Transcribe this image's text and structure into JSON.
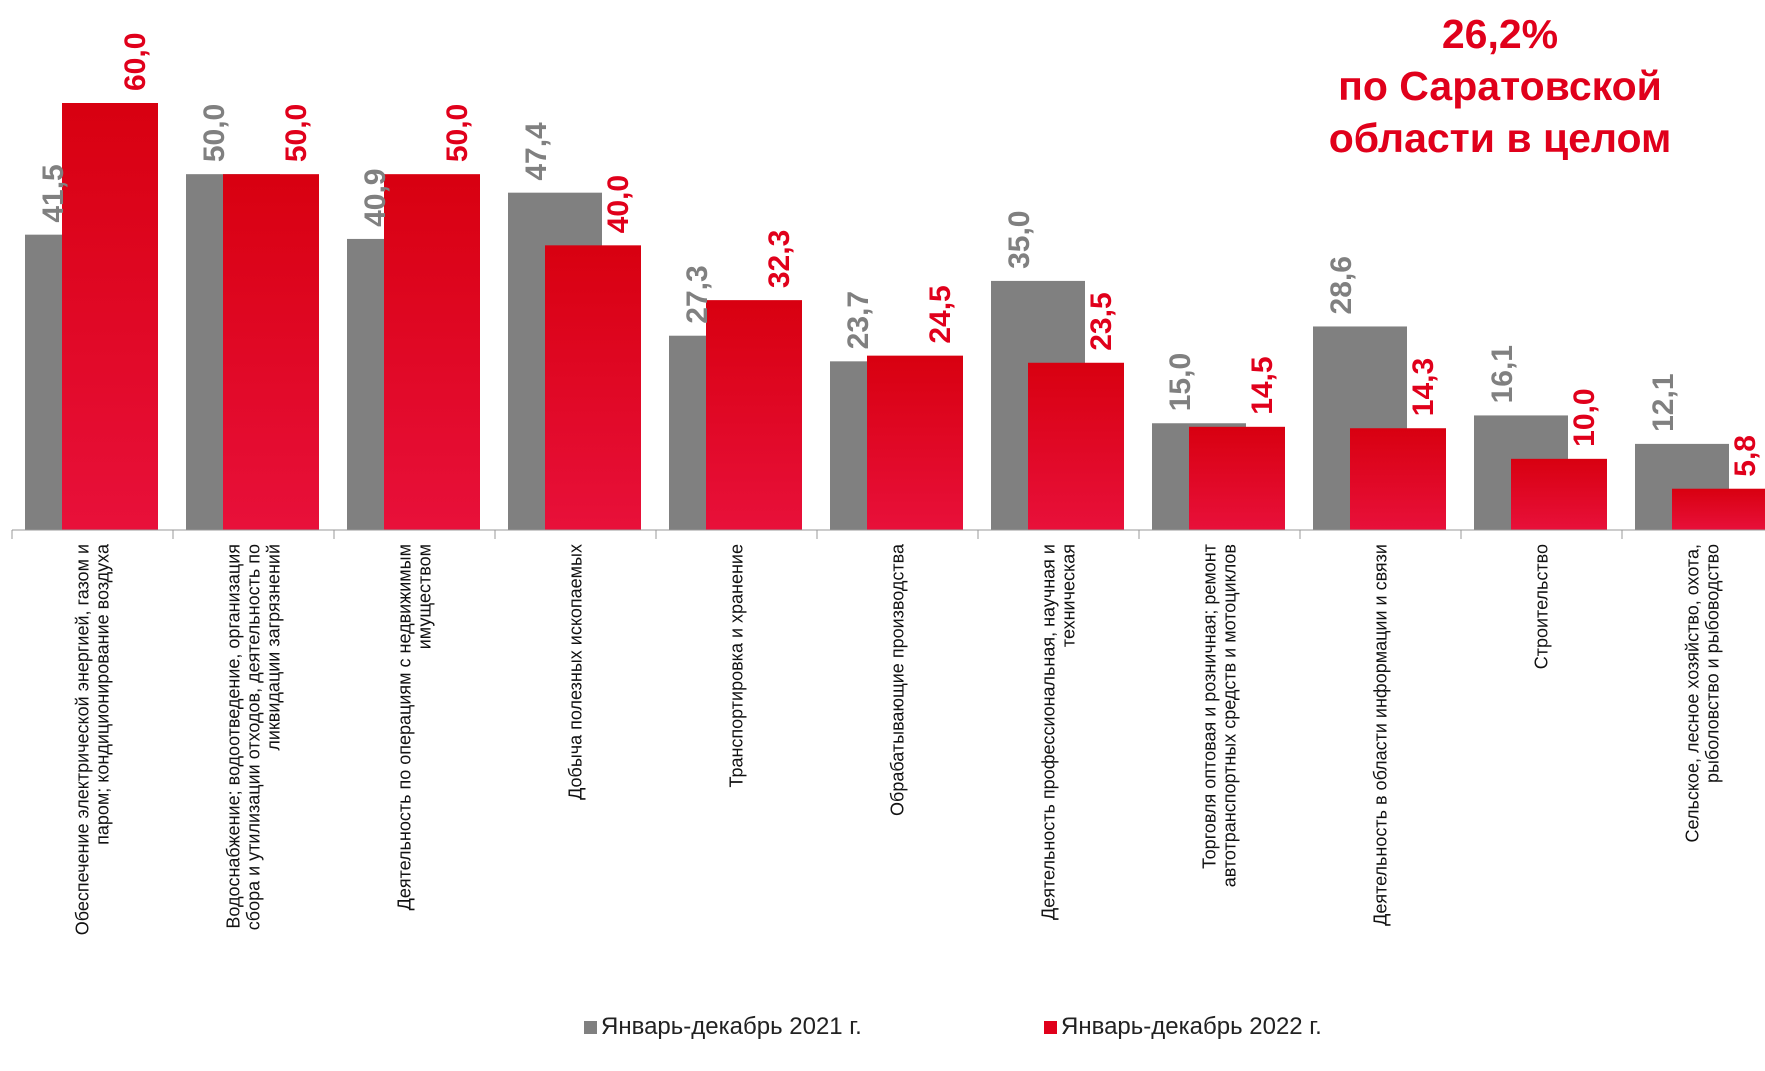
{
  "annotation": {
    "line1": "26,2%",
    "line2": "по Саратовской",
    "line3": "области в целом"
  },
  "legend": {
    "series1": "Январь-декабрь  2021 г.",
    "series2": "Январь-декабрь 2022 г."
  },
  "colors": {
    "series1": "#808080",
    "series2_top": "#d80010",
    "series2_bottom": "#e8103a",
    "label1": "#808080",
    "label2": "#e0001b"
  },
  "chart_data": {
    "type": "bar",
    "categories": [
      "Обеспечение электрической энергией, газом и паром; кондиционирование воздуха",
      "Водоснабжение; водоотведение, организация сбора и утилизации отходов, деятельность по ликвидации загрязнений",
      "Деятельность по операциям с недвижимым имуществом",
      "Добыча полезных ископаемых",
      "Транспортировка и хранение",
      "Обрабатывающие производства",
      "Деятельность профессиональная, научная и техническая",
      "Торговля оптовая и розничная; ремонт автотранспортных средств и мотоциклов",
      "Деятельность в области информации и связи",
      "Строительство",
      "Сельское, лесное хозяйство, охота, рыболовство и  рыбоводство"
    ],
    "series": [
      {
        "name": "Январь-декабрь  2021 г.",
        "values": [
          41.5,
          50.0,
          40.9,
          47.4,
          27.3,
          23.7,
          35.0,
          15.0,
          28.6,
          16.1,
          12.1
        ],
        "labels": [
          "41,5",
          "50,0",
          "40,9",
          "47,4",
          "27,3",
          "23,7",
          "35,0",
          "15,0",
          "28,6",
          "16,1",
          "12,1"
        ]
      },
      {
        "name": "Январь-декабрь 2022 г.",
        "values": [
          60.0,
          50.0,
          50.0,
          40.0,
          32.3,
          24.5,
          23.5,
          14.5,
          14.3,
          10.0,
          5.8
        ],
        "labels": [
          "60,0",
          "50,0",
          "50,0",
          "40,0",
          "32,3",
          "24,5",
          "23,5",
          "14,5",
          "14,3",
          "10,0",
          "5,8"
        ]
      }
    ],
    "ylim": [
      0,
      60
    ],
    "grid": false,
    "legend_position": "bottom"
  }
}
